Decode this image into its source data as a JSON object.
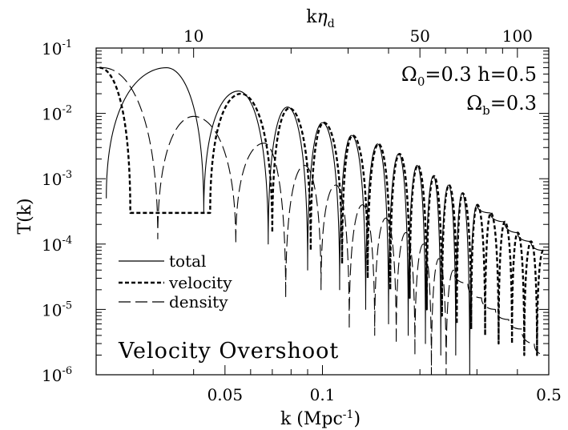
{
  "chart_data": {
    "type": "line",
    "xlabel": "k (Mpc",
    "xlabel_sup": "-1",
    "xlabel_close": ")",
    "ylabel": "T(k)",
    "top_axis_label_base": "k",
    "top_axis_label_eta": "η",
    "top_axis_label_sub": "d",
    "x_scale": "log",
    "y_scale": "log",
    "xlim": [
      0.02,
      0.5
    ],
    "ylim": [
      1e-06,
      0.1
    ],
    "x_ticklabels": [
      {
        "value": 0.05,
        "label": "0.05"
      },
      {
        "value": 0.1,
        "label": "0.1"
      },
      {
        "value": 0.5,
        "label": "0.5"
      }
    ],
    "y_ticklabels": [
      {
        "value": 0.1,
        "base": "10",
        "exp": "-1"
      },
      {
        "value": 0.01,
        "base": "10",
        "exp": "-2"
      },
      {
        "value": 0.001,
        "base": "10",
        "exp": "-3"
      },
      {
        "value": 0.0001,
        "base": "10",
        "exp": "-4"
      },
      {
        "value": 1e-05,
        "base": "10",
        "exp": "-5"
      },
      {
        "value": 1e-06,
        "base": "10",
        "exp": "-6"
      }
    ],
    "top_axis_ticklabels": [
      {
        "k": 0.04,
        "label": "10"
      },
      {
        "k": 0.2,
        "label": "50"
      },
      {
        "k": 0.4,
        "label": "100"
      }
    ],
    "parameters": {
      "line1": {
        "omega": "Ω",
        "sub": "0",
        "text1": "=0.3  h=0.5"
      },
      "line2": {
        "omega": "Ω",
        "sub": "b",
        "text1": "=0.3"
      }
    },
    "annotation": "Velocity Overshoot",
    "grid": false,
    "legend_position": "lower-left",
    "series": [
      {
        "name": "total",
        "style": "solid",
        "peaks": [
          [
            0.033,
            0.05
          ],
          [
            0.055,
            0.022
          ],
          [
            0.078,
            0.0125
          ],
          [
            0.1,
            0.0072
          ],
          [
            0.123,
            0.0046
          ],
          [
            0.148,
            0.0034
          ],
          [
            0.172,
            0.0024
          ],
          [
            0.196,
            0.0016
          ],
          [
            0.22,
            0.0011
          ],
          [
            0.245,
            0.0008
          ],
          [
            0.27,
            0.0006
          ],
          [
            0.3,
            0.0004
          ],
          [
            0.33,
            0.0003
          ],
          [
            0.365,
            0.00022
          ],
          [
            0.4,
            0.00015
          ],
          [
            0.44,
            0.00011
          ],
          [
            0.48,
            8e-05
          ]
        ],
        "troughs": [
          [
            0.0215,
            0.0005
          ],
          [
            0.043,
            0.0003
          ],
          [
            0.068,
            0.0001
          ],
          [
            0.09,
            4e-05
          ],
          [
            0.113,
            2e-05
          ],
          [
            0.136,
            1e-05
          ],
          [
            0.16,
            6e-06
          ],
          [
            0.184,
            4e-06
          ],
          [
            0.208,
            3e-06
          ],
          [
            0.232,
            2e-06
          ],
          [
            0.258,
            2e-06
          ],
          [
            0.285,
            1e-06
          ]
        ]
      },
      {
        "name": "velocity",
        "style": "short-dash",
        "peaks": [
          [
            0.0205,
            0.05
          ],
          [
            0.056,
            0.02
          ],
          [
            0.079,
            0.012
          ],
          [
            0.101,
            0.0072
          ],
          [
            0.124,
            0.0046
          ],
          [
            0.149,
            0.0034
          ],
          [
            0.173,
            0.0024
          ],
          [
            0.197,
            0.0016
          ],
          [
            0.221,
            0.0011
          ],
          [
            0.246,
            0.0008
          ],
          [
            0.271,
            0.0006
          ],
          [
            0.301,
            0.0004
          ],
          [
            0.331,
            0.0003
          ],
          [
            0.366,
            0.00022
          ],
          [
            0.401,
            0.00015
          ],
          [
            0.441,
            0.00011
          ],
          [
            0.481,
            8e-05
          ]
        ],
        "troughs": [
          [
            0.0255,
            0.0003
          ],
          [
            0.045,
            0.0003
          ],
          [
            0.07,
            0.00015
          ],
          [
            0.092,
            8e-05
          ],
          [
            0.115,
            5e-05
          ],
          [
            0.138,
            3e-05
          ],
          [
            0.162,
            2e-05
          ],
          [
            0.186,
            1.5e-05
          ],
          [
            0.21,
            1e-05
          ],
          [
            0.234,
            8e-06
          ],
          [
            0.26,
            6e-06
          ],
          [
            0.288,
            5e-06
          ],
          [
            0.318,
            4e-06
          ],
          [
            0.35,
            3e-06
          ],
          [
            0.385,
            3e-06
          ],
          [
            0.42,
            2e-06
          ],
          [
            0.46,
            2e-06
          ]
        ]
      },
      {
        "name": "density",
        "style": "long-dash",
        "peaks": [
          [
            0.021,
            0.05
          ],
          [
            0.04,
            0.009
          ],
          [
            0.066,
            0.0035
          ],
          [
            0.088,
            0.0016
          ],
          [
            0.11,
            0.0008
          ],
          [
            0.133,
            0.0004
          ],
          [
            0.157,
            0.00025
          ],
          [
            0.181,
            0.00015
          ],
          [
            0.205,
            0.0001
          ],
          [
            0.229,
            6e-05
          ],
          [
            0.254,
            4e-05
          ],
          [
            0.281,
            2.5e-05
          ],
          [
            0.31,
            1.5e-05
          ],
          [
            0.342,
            1e-05
          ],
          [
            0.376,
            7e-06
          ],
          [
            0.412,
            5e-06
          ],
          [
            0.451,
            3e-06
          ],
          [
            0.49,
            2e-06
          ]
        ],
        "troughs": [
          [
            0.031,
            0.00012
          ],
          [
            0.054,
            0.0001
          ],
          [
            0.077,
            1.5e-05
          ],
          [
            0.099,
            2e-05
          ],
          [
            0.121,
            5e-06
          ],
          [
            0.145,
            4e-06
          ],
          [
            0.169,
            3e-06
          ],
          [
            0.193,
            2e-06
          ],
          [
            0.217,
            1e-06
          ],
          [
            0.241,
            1e-06
          ]
        ]
      }
    ]
  }
}
